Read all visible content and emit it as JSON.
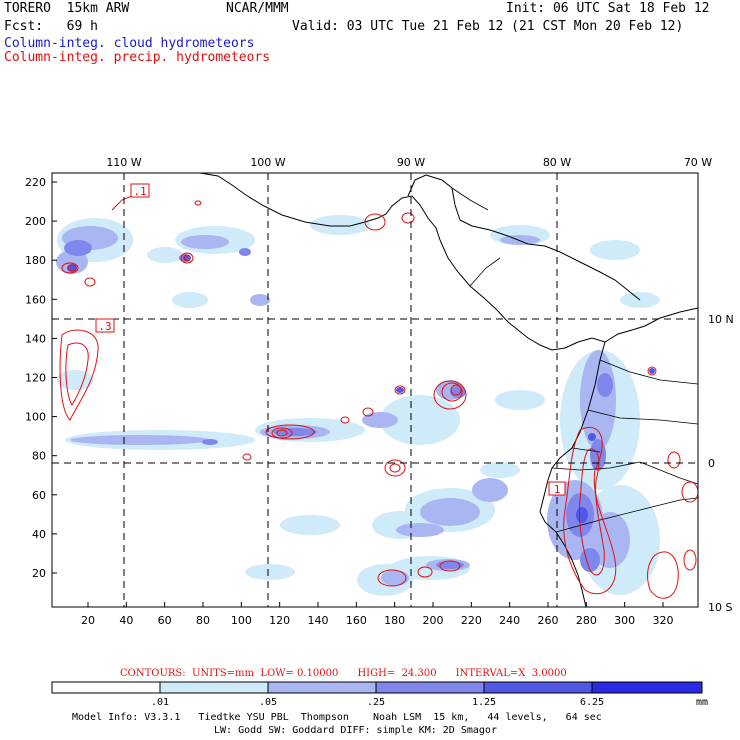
{
  "header": {
    "model": "TORERO  15km ARW",
    "org": "NCAR/MMM",
    "init": "Init: 06 UTC Sat 18 Feb 12",
    "fcst": "Fcst:   69 h",
    "valid": "Valid: 03 UTC Tue 21 Feb 12 (21 CST Mon 20 Feb 12)",
    "cloud_label": "Column-integ. cloud hydrometeors",
    "precip_label": "Column-integ. precip. hydrometeors"
  },
  "colors": {
    "cloud": "#1a1acc",
    "precip": "#e01010",
    "shade1": "#cfeaf8",
    "shade2": "#a9b6f2",
    "shade3": "#7f86ec",
    "shade4": "#5158e6",
    "shade5": "#2a2ae4"
  },
  "map": {
    "lon_labels": [
      "110 W",
      "100 W",
      "90 W",
      "80 W",
      "70 W"
    ],
    "lat_labels": [
      "10 N",
      "0",
      "10 S"
    ],
    "y_ticks": [
      "220",
      "200",
      "180",
      "160",
      "140",
      "120",
      "100",
      "80",
      "60",
      "40",
      "20"
    ],
    "x_ticks": [
      "20",
      "40",
      "60",
      "80",
      "100",
      "120",
      "140",
      "160",
      "180",
      "200",
      "220",
      "240",
      "260",
      "280",
      "300",
      "320"
    ],
    "contour_labels": [
      ".1",
      ".3",
      "1"
    ]
  },
  "contours_info": "CONTOURS:  UNITS=mm  LOW= 0.10000      HIGH=  24.300      INTERVAL=X  3.0000",
  "colorbar": {
    "labels": [
      ".01",
      ".05",
      ".25",
      "1.25",
      "6.25"
    ],
    "unit": "mm"
  },
  "footer": {
    "line1": "Model Info: V3.3.1   Tiedtke YSU PBL  Thompson    Noah LSM  15 km,   44 levels,   64 sec",
    "line2": "LW: Godd SW: Goddard DIFF: simple KM: 2D Smagor"
  }
}
